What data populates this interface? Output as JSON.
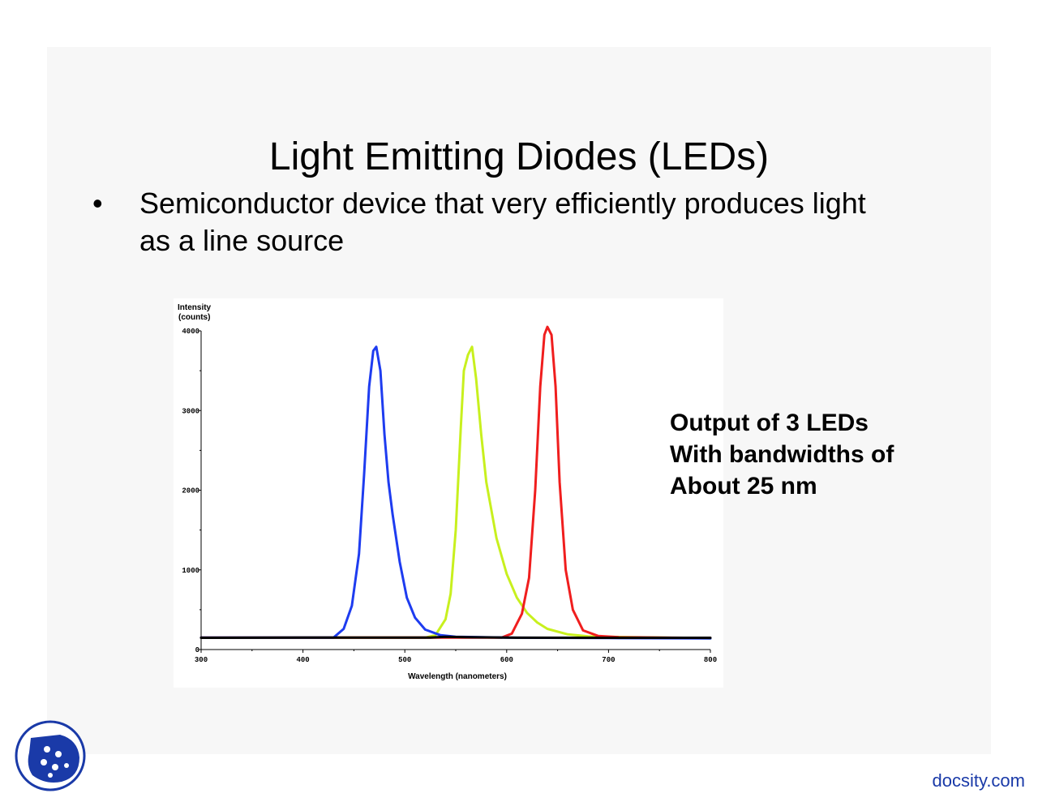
{
  "slide": {
    "title": "Light Emitting Diodes (LEDs)",
    "bullet_symbol": "•",
    "bullet_line1": "Semiconductor device that very efficiently produces light",
    "bullet_line2": "as a line source",
    "annotation": [
      "Output of 3 LEDs",
      "With bandwidths of",
      "About 25 nm"
    ]
  },
  "footer": {
    "logo_icon": "docsity-logo-icon",
    "watermark": "docsity.com",
    "watermark_color": "#1a3aa8"
  },
  "chart_data": {
    "type": "line",
    "title": "",
    "ylabel_line1": "Intensity",
    "ylabel_line2": "(counts)",
    "xlabel": "Wavelength (nanometers)",
    "xlim": [
      300,
      800
    ],
    "ylim": [
      0,
      4000
    ],
    "x_ticks": [
      300,
      400,
      500,
      600,
      700,
      800
    ],
    "x_tick_labels": [
      "300",
      "400",
      "500",
      "600",
      "700",
      "800"
    ],
    "y_ticks": [
      0,
      1000,
      2000,
      3000,
      4000
    ],
    "y_tick_labels": [
      "0",
      "1000",
      "2000",
      "3000",
      "4000"
    ],
    "grid": false,
    "series": [
      {
        "color": "#c8f01e",
        "x": [
          300,
          520,
          530,
          540,
          545,
          550,
          555,
          558,
          562,
          566,
          570,
          575,
          580,
          590,
          600,
          610,
          620,
          630,
          640,
          660,
          680,
          700,
          750,
          800
        ],
        "y": [
          150,
          150,
          180,
          380,
          700,
          1500,
          2800,
          3500,
          3700,
          3800,
          3400,
          2700,
          2100,
          1400,
          950,
          650,
          460,
          340,
          260,
          190,
          165,
          160,
          150,
          140
        ]
      },
      {
        "color": "#f01e1e",
        "x": [
          300,
          595,
          605,
          615,
          622,
          628,
          633,
          637,
          640,
          644,
          648,
          652,
          658,
          665,
          675,
          690,
          710,
          750,
          800
        ],
        "y": [
          150,
          150,
          200,
          450,
          900,
          2000,
          3300,
          3950,
          4050,
          3950,
          3300,
          2100,
          1000,
          500,
          240,
          170,
          155,
          150,
          145
        ]
      },
      {
        "color": "#1e3cf0",
        "x": [
          300,
          430,
          440,
          448,
          455,
          460,
          465,
          469,
          472,
          476,
          480,
          484,
          488,
          495,
          502,
          510,
          520,
          535,
          550,
          600,
          700,
          800
        ],
        "y": [
          150,
          150,
          260,
          550,
          1200,
          2200,
          3300,
          3750,
          3800,
          3500,
          2700,
          2100,
          1700,
          1100,
          650,
          400,
          250,
          180,
          160,
          150,
          145,
          140
        ]
      },
      {
        "color": "#000000",
        "x": [
          300,
          400,
          500,
          525,
          540,
          560,
          600,
          700,
          800
        ],
        "y": [
          148,
          150,
          150,
          150,
          160,
          155,
          150,
          148,
          148
        ]
      }
    ]
  }
}
